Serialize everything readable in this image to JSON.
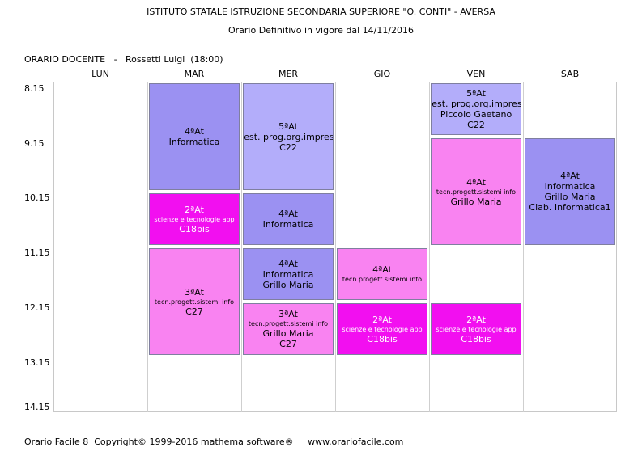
{
  "header": {
    "school": "ISTITUTO STATALE ISTRUZIONE SECONDARIA SUPERIORE \"O. CONTI\" - AVERSA",
    "subtitle": "Orario Definitivo in vigore dal 14/11/2016",
    "teacher_line": "ORARIO DOCENTE   -   Rossetti Luigi  (18:00)"
  },
  "days": [
    "LUN",
    "MAR",
    "MER",
    "GIO",
    "VEN",
    "SAB"
  ],
  "times": [
    "8.15",
    "9.15",
    "10.15",
    "11.15",
    "12.15",
    "13.15",
    "14.15"
  ],
  "lessons": [
    {
      "day": 1,
      "start": 0,
      "span": 2,
      "color": "purple",
      "lines": [
        {
          "t": "4ªAt",
          "s": "big"
        },
        {
          "t": "Informatica",
          "s": "big"
        }
      ]
    },
    {
      "day": 1,
      "start": 2,
      "span": 1,
      "color": "magenta",
      "lines": [
        {
          "t": "2ªAt",
          "s": "big"
        },
        {
          "t": "scienze e tecnologie app",
          "s": "small"
        },
        {
          "t": "C18bis",
          "s": "big"
        }
      ]
    },
    {
      "day": 1,
      "start": 3,
      "span": 2,
      "color": "pink",
      "lines": [
        {
          "t": "3ªAt",
          "s": "big"
        },
        {
          "t": "tecn.progett.sistemi info",
          "s": "small"
        },
        {
          "t": "C27",
          "s": "big"
        }
      ]
    },
    {
      "day": 2,
      "start": 0,
      "span": 2,
      "color": "lavender",
      "lines": [
        {
          "t": "5ªAt",
          "s": "big"
        },
        {
          "t": "Gest. prog.org.impresa",
          "s": "big"
        },
        {
          "t": "C22",
          "s": "big"
        }
      ]
    },
    {
      "day": 2,
      "start": 2,
      "span": 1,
      "color": "purple",
      "lines": [
        {
          "t": "4ªAt",
          "s": "big"
        },
        {
          "t": "Informatica",
          "s": "big"
        }
      ]
    },
    {
      "day": 2,
      "start": 3,
      "span": 1,
      "color": "purple",
      "lines": [
        {
          "t": "4ªAt",
          "s": "big"
        },
        {
          "t": "Informatica",
          "s": "big"
        },
        {
          "t": "Grillo Maria",
          "s": "big"
        }
      ]
    },
    {
      "day": 2,
      "start": 4,
      "span": 1,
      "color": "pink",
      "lines": [
        {
          "t": "3ªAt",
          "s": "big"
        },
        {
          "t": "tecn.progett.sistemi info",
          "s": "small"
        },
        {
          "t": "Grillo Maria",
          "s": "big"
        },
        {
          "t": "C27",
          "s": "big"
        }
      ]
    },
    {
      "day": 3,
      "start": 3,
      "span": 1,
      "color": "pink",
      "lines": [
        {
          "t": "4ªAt",
          "s": "big"
        },
        {
          "t": "tecn.progett.sistemi info",
          "s": "small"
        }
      ]
    },
    {
      "day": 3,
      "start": 4,
      "span": 1,
      "color": "magenta",
      "lines": [
        {
          "t": "2ªAt",
          "s": "big"
        },
        {
          "t": "scienze e tecnologie app",
          "s": "small"
        },
        {
          "t": "C18bis",
          "s": "big"
        }
      ]
    },
    {
      "day": 4,
      "start": 0,
      "span": 1,
      "color": "lavender",
      "lines": [
        {
          "t": "5ªAt",
          "s": "big"
        },
        {
          "t": "Gest. prog.org.impresa",
          "s": "big"
        },
        {
          "t": "Piccolo Gaetano",
          "s": "big"
        },
        {
          "t": "C22",
          "s": "big"
        }
      ]
    },
    {
      "day": 4,
      "start": 1,
      "span": 2,
      "color": "pink",
      "lines": [
        {
          "t": "4ªAt",
          "s": "big"
        },
        {
          "t": "tecn.progett.sistemi info",
          "s": "small"
        },
        {
          "t": "Grillo Maria",
          "s": "big"
        }
      ]
    },
    {
      "day": 4,
      "start": 4,
      "span": 1,
      "color": "magenta",
      "lines": [
        {
          "t": "2ªAt",
          "s": "big"
        },
        {
          "t": "scienze e tecnologie app",
          "s": "small"
        },
        {
          "t": "C18bis",
          "s": "big"
        }
      ]
    },
    {
      "day": 5,
      "start": 1,
      "span": 2,
      "color": "purple",
      "lines": [
        {
          "t": "4ªAt",
          "s": "big"
        },
        {
          "t": "Informatica",
          "s": "big"
        },
        {
          "t": "Grillo Maria",
          "s": "big"
        },
        {
          "t": "Clab. Informatica1",
          "s": "big"
        }
      ]
    }
  ],
  "footer": "Orario Facile 8  Copyright© 1999-2016 mathema software®     www.orariofacile.com"
}
